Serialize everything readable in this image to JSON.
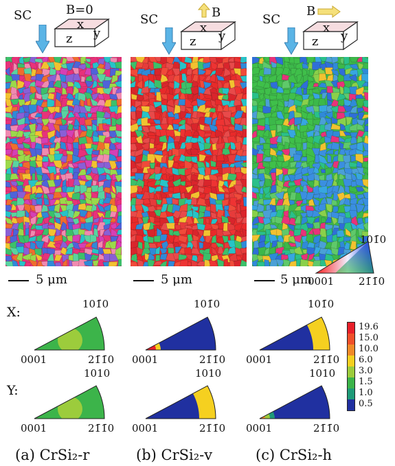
{
  "panels": [
    {
      "id": "a",
      "caption": "(a) CrSi₂-r",
      "sc_label": "SC",
      "field_label": "B=0",
      "has_field_arrow": false,
      "axis_x": "x",
      "axis_y": "y",
      "axis_z": "z",
      "scale_label": "5 μm",
      "map_palette": [
        "#e8327a",
        "#2f8ad8",
        "#f2c230",
        "#3cc06a",
        "#8a5fd6",
        "#ef6d2e",
        "#27c3c8",
        "#d63fb5",
        "#9bd94a",
        "#f08ab0",
        "#4f63d9",
        "#59d3a0"
      ],
      "ipf_x": {
        "levels": [
          1.5,
          3.0
        ]
      },
      "ipf_y": {
        "levels": [
          1.5,
          3.0
        ]
      }
    },
    {
      "id": "b",
      "caption": "(b) CrSi₂-v",
      "sc_label": "SC",
      "field_label": "B",
      "has_field_arrow": true,
      "field_dir": "up",
      "axis_x": "x",
      "axis_y": "y",
      "axis_z": "z",
      "scale_label": "5 μm",
      "map_palette": [
        "#e82a2a",
        "#e63b3b",
        "#f04a3a",
        "#d9252c",
        "#ee3333",
        "#e84a4a",
        "#2f8ad8",
        "#3cc06a",
        "#f2c230",
        "#27c3c8"
      ],
      "ipf_x": {
        "levels": [
          1.0,
          6.0,
          19.6
        ]
      },
      "ipf_y": {
        "levels": [
          1.0,
          3.0,
          6.0
        ]
      }
    },
    {
      "id": "c",
      "caption": "(c) CrSi₂-h",
      "sc_label": "SC",
      "field_label": "B",
      "has_field_arrow": true,
      "field_dir": "right",
      "axis_x": "x",
      "axis_y": "y",
      "axis_z": "z",
      "scale_label": "5 μm",
      "map_palette": [
        "#3cb84a",
        "#5fc96a",
        "#2f8ad8",
        "#37a6e0",
        "#4aa0d6",
        "#2ac08a",
        "#8ad04a",
        "#2f6fd8",
        "#e8327a",
        "#f2c230"
      ],
      "ipf_x": {
        "levels": [
          1.0,
          1.5,
          6.0
        ]
      },
      "ipf_y": {
        "levels": [
          1.0,
          3.0,
          10.0
        ]
      }
    }
  ],
  "ipf_labels": {
    "origin": "0001",
    "x_top": "101̄0",
    "y_top": "1010",
    "right": "21̄1̄0"
  },
  "row_labels": {
    "x": "X:",
    "y": "Y:"
  },
  "color_key": {
    "top": "101̄0",
    "left": "0001",
    "right": "21̄1̄0"
  },
  "legend": {
    "values": [
      "19.6",
      "15.0",
      "10.0",
      "6.0",
      "3.0",
      "1.5",
      "1.0",
      "0.5"
    ],
    "colors": [
      "#e8202a",
      "#f0502a",
      "#f08a28",
      "#f5d020",
      "#9ccc3c",
      "#3cb44a",
      "#1f9a78",
      "#2030a0"
    ]
  }
}
